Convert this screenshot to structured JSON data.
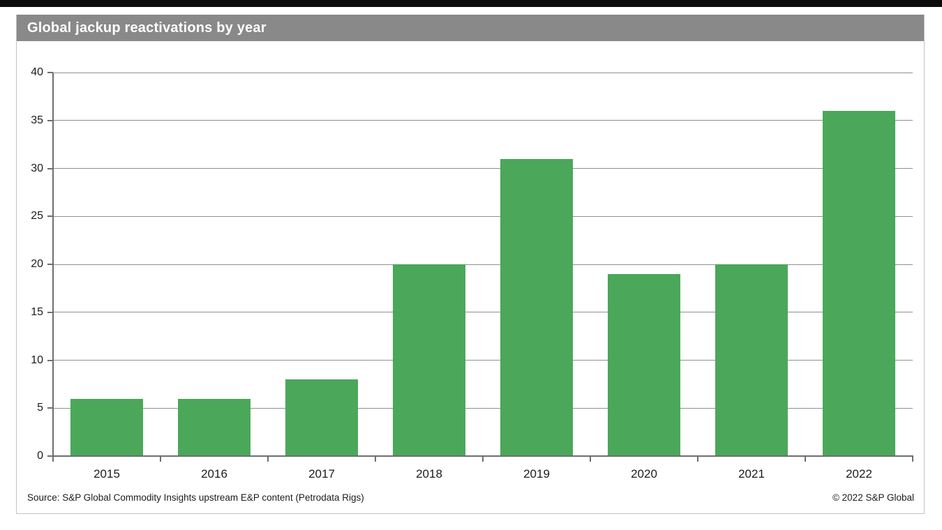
{
  "card": {
    "title": "Global jackup reactivations by year",
    "header_bg": "#898989",
    "border_color": "#c3c3c3"
  },
  "footer": {
    "source": "Source: S&P Global Commodity Insights upstream E&P content (Petrodata Rigs)",
    "copyright": "© 2022 S&P Global"
  },
  "chart_data": {
    "type": "bar",
    "title": "Global jackup reactivations by year",
    "categories": [
      "2015",
      "2016",
      "2017",
      "2018",
      "2019",
      "2020",
      "2021",
      "2022"
    ],
    "values": [
      6,
      6,
      8,
      20,
      31,
      19,
      20,
      36
    ],
    "xlabel": "",
    "ylabel": "",
    "ylim": [
      0,
      40
    ],
    "ytick_step": 5,
    "grid": true,
    "legend_position": "none",
    "bar_color": "#4BA75A",
    "grid_color": "#8f8f8f",
    "axis_color": "#6e6e6e"
  }
}
